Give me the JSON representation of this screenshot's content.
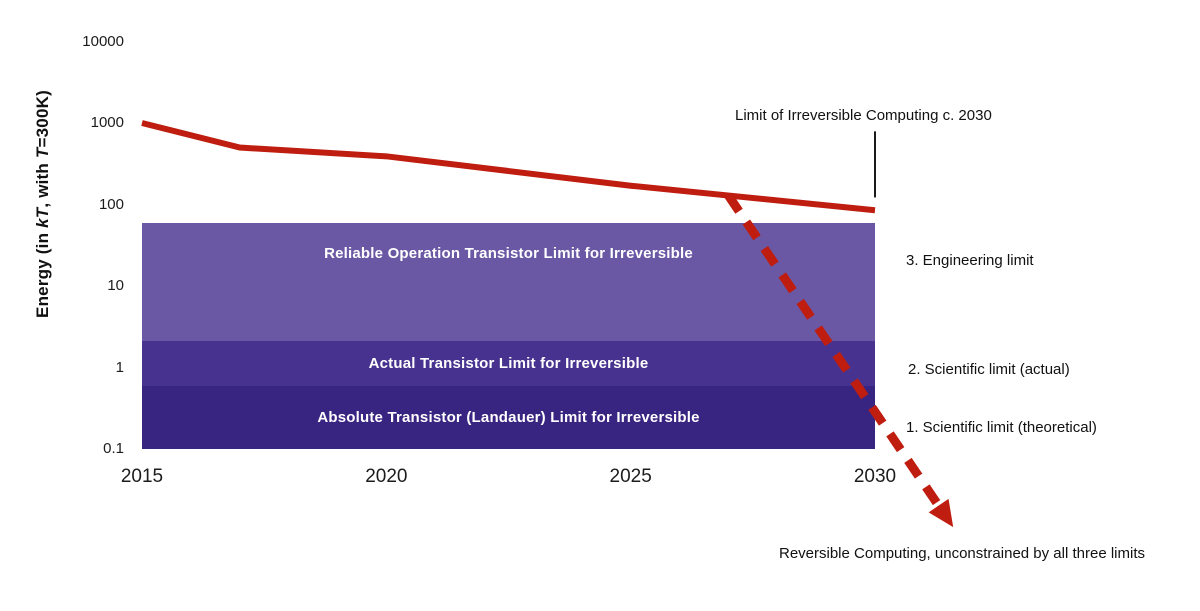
{
  "chart_data": {
    "type": "line",
    "title": "",
    "ylabel": "Energy (in kT, with T=300K)",
    "ylabel_parts": {
      "p1": "Energy (in ",
      "i1": "kT",
      "p2": ", with ",
      "i2": "T",
      "p3": "=300K)"
    },
    "xlabel": "",
    "xlim": [
      2015,
      2030
    ],
    "ylim": [
      0.1,
      10000
    ],
    "y_scale": "log",
    "grid": false,
    "legend": "none",
    "x_ticks": [
      2015,
      2020,
      2025,
      2030
    ],
    "y_ticks": [
      "10000",
      "1000",
      "100",
      "10",
      "1",
      "0.1"
    ],
    "series": [
      {
        "color": "#bf1d10",
        "x": [
          2015,
          2017,
          2020,
          2025,
          2030
        ],
        "values": [
          1000,
          500,
          390,
          170,
          85
        ]
      }
    ],
    "bands": [
      {
        "label": "Reliable Operation Transistor Limit for Irreversible",
        "annotation": "3. Engineering limit",
        "from": 2.1,
        "to": 60,
        "color": "#6a58a5"
      },
      {
        "label": "Actual Transistor Limit for Irreversible",
        "annotation": "2. Scientific limit (actual)",
        "from": 0.6,
        "to": 2.1,
        "color": "#47338f"
      },
      {
        "label": "Absolute Transistor (Landauer) Limit for Irreversible",
        "annotation": "1. Scientific limit (theoretical)",
        "from": 0.1,
        "to": 0.6,
        "color": "#382581"
      }
    ],
    "annotations": {
      "marker": {
        "label": "Limit of Irreversible Computing c. 2030",
        "x": 2030,
        "value_top": 790,
        "value_bottom": 122
      },
      "arrow": {
        "label": "Reversible Computing, unconstrained by all three limits",
        "color": "#bf1d10",
        "from": {
          "x": 2027,
          "energy": 129
        },
        "to": {
          "x": 2031.6,
          "energy": 0.011
        }
      }
    }
  }
}
